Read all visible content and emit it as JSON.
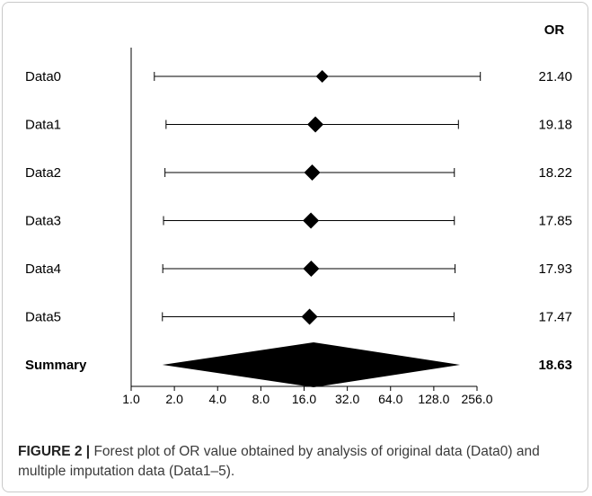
{
  "chart_data": {
    "type": "forest",
    "stat_header": "OR",
    "x_scale": "log2",
    "x_ticks": [
      "1.0",
      "2.0",
      "4.0",
      "8.0",
      "16.0",
      "32.0",
      "64.0",
      "128.0",
      "256.0"
    ],
    "xlim": [
      1.0,
      256.0
    ],
    "rows": [
      {
        "label": "Data0",
        "or": 21.4,
        "or_text": "21.40",
        "ci": [
          1.45,
          270.0
        ]
      },
      {
        "label": "Data1",
        "or": 19.18,
        "or_text": "19.18",
        "ci": [
          1.75,
          190.0
        ]
      },
      {
        "label": "Data2",
        "or": 18.22,
        "or_text": "18.22",
        "ci": [
          1.72,
          178.0
        ]
      },
      {
        "label": "Data3",
        "or": 17.85,
        "or_text": "17.85",
        "ci": [
          1.68,
          178.0
        ]
      },
      {
        "label": "Data4",
        "or": 17.93,
        "or_text": "17.93",
        "ci": [
          1.66,
          180.0
        ]
      },
      {
        "label": "Data5",
        "or": 17.47,
        "or_text": "17.47",
        "ci": [
          1.65,
          177.0
        ]
      }
    ],
    "summary": {
      "label": "Summary",
      "or": 18.63,
      "or_text": "18.63",
      "ci": [
        1.65,
        195.0
      ]
    }
  },
  "caption": {
    "label": "FIGURE 2 |",
    "text": " Forest plot of OR value obtained by analysis of original data (Data0) and multiple imputation data (Data1–5)."
  }
}
